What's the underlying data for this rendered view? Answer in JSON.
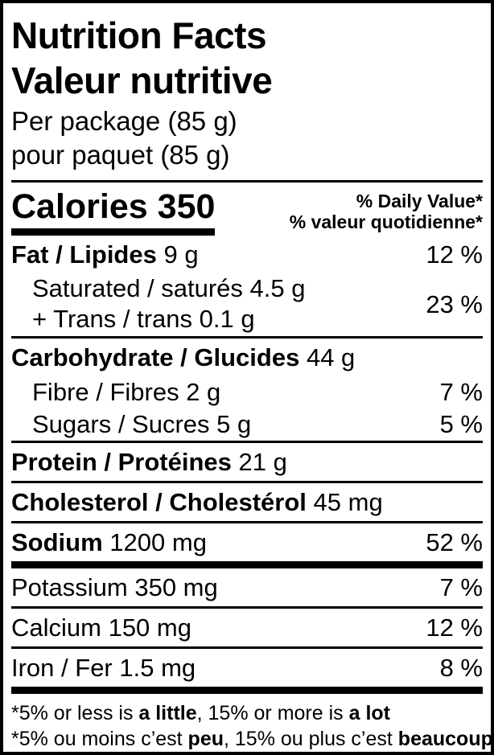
{
  "header": {
    "title_en": "Nutrition Facts",
    "title_fr": "Valeur nutritive",
    "serving_en": "Per package (85 g)",
    "serving_fr": "pour paquet (85 g)"
  },
  "calories": {
    "label": "Calories",
    "value": "350",
    "dv_header_en": "% Daily Value*",
    "dv_header_fr": "% valeur quotidienne*"
  },
  "nutrients": {
    "fat": {
      "name": "Fat / Lipides",
      "amount": "9 g",
      "dv": "12 %"
    },
    "sat_trans": {
      "line1": "Saturated / saturés 4.5 g",
      "line2": "+ Trans / trans 0.1 g",
      "dv": "23 %"
    },
    "carbohydrate": {
      "name": "Carbohydrate / Glucides",
      "amount": "44 g"
    },
    "fibre": {
      "name": "Fibre / Fibres 2 g",
      "dv": "7 %"
    },
    "sugars": {
      "name": "Sugars / Sucres 5 g",
      "dv": "5 %"
    },
    "protein": {
      "name": "Protein / Protéines",
      "amount": "21 g"
    },
    "cholesterol": {
      "name": "Cholesterol / Cholestérol",
      "amount": "45 mg"
    },
    "sodium": {
      "name": "Sodium",
      "amount": "1200 mg",
      "dv": "52 %"
    },
    "potassium": {
      "name": "Potassium 350 mg",
      "dv": "7 %"
    },
    "calcium": {
      "name": "Calcium 150 mg",
      "dv": "12 %"
    },
    "iron": {
      "name": "Iron / Fer 1.5 mg",
      "dv": "8 %"
    }
  },
  "footnote": {
    "en1": "*5% or less is ",
    "en2": "a little",
    "en3": ", 15% or more is ",
    "en4": "a lot",
    "fr1": "*5% ou moins c’est ",
    "fr2": "peu",
    "fr3": ", 15% ou plus c’est ",
    "fr4": "beaucoup"
  },
  "colors": {
    "text": "#000000",
    "background": "#ffffff",
    "rule": "#000000"
  }
}
